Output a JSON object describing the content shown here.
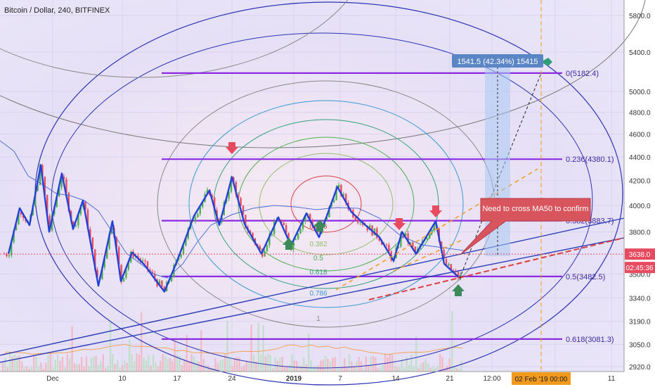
{
  "header": {
    "symbol_title": "Bitcoin / Dollar, 240, BITFINEX"
  },
  "chart_data": {
    "type": "candlestick",
    "title": "Bitcoin / Dollar, 240, BITFINEX",
    "y_axis": {
      "scale": "log",
      "ylim": [
        2900,
        6100
      ],
      "ticks": [
        "5800.0",
        "5400.0",
        "5000.0",
        "4800.0",
        "4600.0",
        "4400.0",
        "4200.0",
        "4000.0",
        "3800.0",
        "3500.0",
        "3340.0",
        "3190.0",
        "3050.0",
        "2920.0"
      ],
      "position": "right"
    },
    "x_axis": {
      "tick_labels": [
        "Dec",
        "10",
        "17",
        "24",
        "2019",
        "7",
        "14",
        "21",
        "12:00",
        "11"
      ],
      "highlight_label": "02 Feb '19  00:00"
    },
    "price_label": {
      "value": "3638.0",
      "color": "#e84a5f"
    },
    "countdown_label": {
      "value": "02:45:36",
      "color": "#e84a5f"
    },
    "fib_retracement": [
      {
        "label": "0(5182.4)",
        "price": 5182.4
      },
      {
        "label": "0.236(4380.1)",
        "price": 4380.1
      },
      {
        "label": "0.382(3883.7)",
        "price": 3883.7
      },
      {
        "label": "0.5(3482.5)",
        "price": 3482.5
      },
      {
        "label": "0.618(3081.3)",
        "price": 3081.3
      }
    ],
    "fib_circle_labels": [
      "0.236",
      "0.382",
      "0.5",
      "0.618",
      "0.786",
      "1"
    ],
    "measure_label": "1541.5 (42.34%) 15415",
    "annotation_text": "Need to cross MA50 to confirm",
    "close_price_approx": 3638.0,
    "colors": {
      "fib_line": "#8a2be2",
      "zigzag": "#2340d8",
      "ma50": "#4f6fd0",
      "up_candle": "#4caf50",
      "down_candle": "#e84a5f",
      "annotation_bg": "#d9555e",
      "measure_bg": "#5b86c6",
      "highlight_axis_bg": "#f29a1d",
      "trendline": "#2b3cb8",
      "projection_dash": "#f29a1d",
      "up_arrow": "#3c8a5a",
      "down_arrow": "#e84a5f"
    }
  }
}
